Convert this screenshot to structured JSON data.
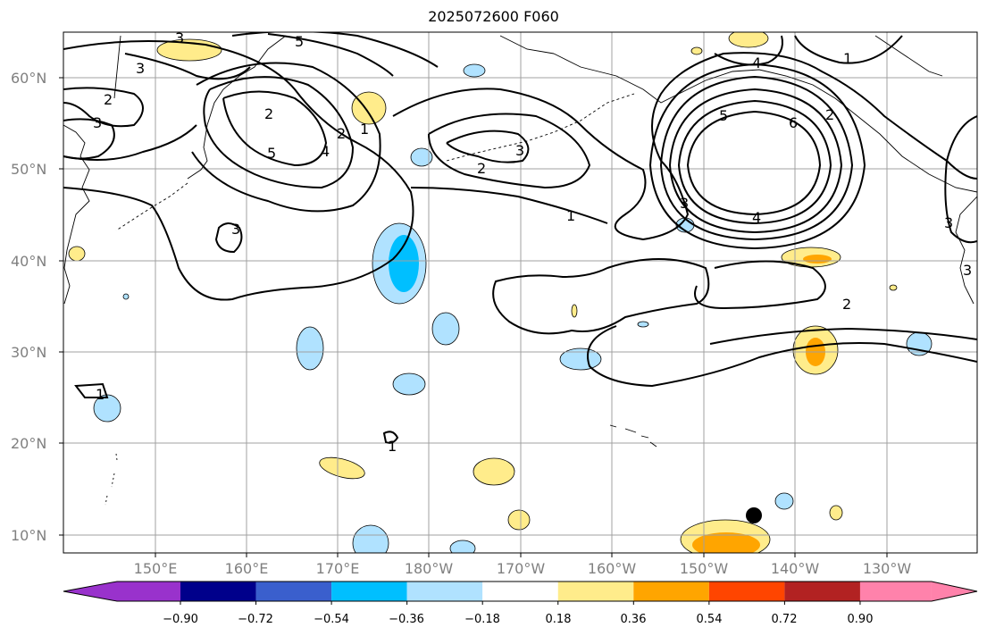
{
  "title": "2025072600 F060",
  "lat_labels": [
    "60°N",
    "50°N",
    "40°N",
    "30°N",
    "20°N",
    "10°N"
  ],
  "lon_labels": [
    "150°E",
    "160°E",
    "170°E",
    "180°W",
    "170°W",
    "160°W",
    "150°W",
    "140°W",
    "130°W"
  ],
  "colorbar": {
    "ticks": [
      "−0.90",
      "−0.72",
      "−0.54",
      "−0.36",
      "−0.18",
      "0.18",
      "0.36",
      "0.54",
      "0.72",
      "0.90"
    ],
    "colors": [
      "#9932cc",
      "#00008b",
      "#3a5fcd",
      "#00bfff",
      "#b0e2ff",
      "#ffffff",
      "#ffec8b",
      "#ffa500",
      "#ff4500",
      "#b22222",
      "#ff82ab"
    ]
  },
  "contour_labels": [
    "3",
    "5",
    "2",
    "3",
    "5",
    "4",
    "2",
    "1",
    "3",
    "2",
    "3",
    "3",
    "2",
    "1",
    "4",
    "5",
    "6",
    "2",
    "3",
    "4",
    "1",
    "3",
    "2",
    "1",
    "1",
    "3"
  ],
  "colors": {
    "frame": "#000000",
    "grid": "#a0a0a0",
    "coast": "#000000",
    "contour": "#000000",
    "blue_light": "#b0e2ff",
    "blue_mid": "#00bfff",
    "yellow": "#ffec8b",
    "orange": "#ffa500",
    "marker": "#000000"
  }
}
